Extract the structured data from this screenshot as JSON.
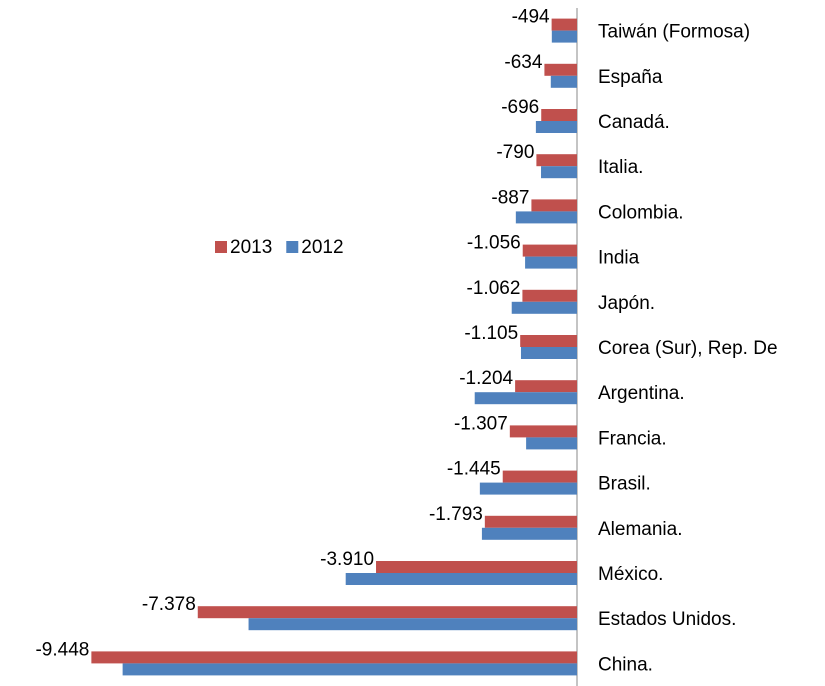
{
  "chart_data": {
    "type": "hbar",
    "categories": [
      "Taiwán (Formosa)",
      "España",
      "Canadá.",
      "Italia.",
      "Colombia.",
      "India",
      "Japón.",
      "Corea (Sur), Rep. De",
      "Argentina.",
      "Francia.",
      "Brasil.",
      "Alemania.",
      "México.",
      "Estados Unidos.",
      "China."
    ],
    "series": [
      {
        "name": "2013",
        "color": "#c0504d",
        "values": [
          -494,
          -634,
          -696,
          -790,
          -887,
          -1056,
          -1062,
          -1105,
          -1204,
          -1307,
          -1445,
          -1793,
          -3910,
          -7378,
          -9448
        ],
        "value_labels": [
          "-494",
          "-634",
          "-696",
          "-790",
          "-887",
          "-1.056",
          "-1.062",
          "-1.105",
          "-1.204",
          "-1.307",
          "-1.445",
          "-1.793",
          "-3.910",
          "-7.378",
          "-9.448"
        ]
      },
      {
        "name": "2012",
        "color": "#4f81bd",
        "values": [
          -490,
          -510,
          -800,
          -700,
          -1190,
          -1010,
          -1270,
          -1090,
          -1990,
          -990,
          -1890,
          -1850,
          -4500,
          -6390,
          -8840
        ]
      }
    ],
    "xlim": [
      -10000,
      0
    ],
    "legend": "left"
  }
}
